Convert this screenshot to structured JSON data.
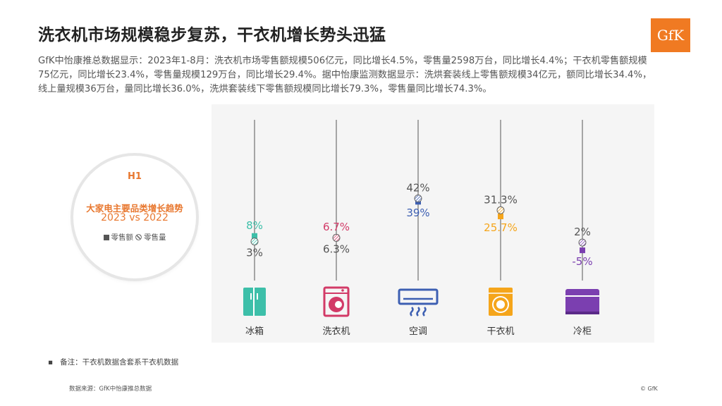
{
  "title": "洗衣机市场规模稳步复苏，干衣机增长势头迅猛",
  "logo_text": "GfK",
  "summary": "GfK中怡康推总数据显示：2023年1-8月：洗衣机市场零售额规模506亿元，同比增长4.5%，零售量2598万台，同比增长4.4%；干衣机零售额规模75亿元，同比增长23.4%，零售量规模129万台，同比增长29.4%。据中怡康监测数据显示：洗烘套装线上零售额规模34亿元，额同比增长34.4%，线上量规模36万台，量同比增长36.0%，洗烘套装线下零售额规模同比增长79.3%，零售量同比增长74.3%。",
  "badge": {
    "period": "H1",
    "subtitle": "大家电主要品类增长趋势",
    "years": "2023 vs 2022",
    "legend_value": "零售额",
    "legend_volume": "零售量"
  },
  "chart_data": {
    "type": "scatter",
    "title": "大家电主要品类增长趋势",
    "categories": [
      "冰箱",
      "洗衣机",
      "空调",
      "干衣机",
      "冷柜"
    ],
    "series": [
      {
        "name": "零售额",
        "values": [
          8,
          6.7,
          39,
          25.7,
          -5
        ],
        "labels": [
          "8%",
          "6.7%",
          "39%",
          "25.7%",
          "-5%"
        ]
      },
      {
        "name": "零售量",
        "values": [
          3,
          6.3,
          42,
          31.3,
          2
        ],
        "labels": [
          "3%",
          "6.3%",
          "42%",
          "31.3%",
          "2%"
        ]
      }
    ],
    "colors": [
      "#3dbfa9",
      "#d23a67",
      "#3d5fb2",
      "#f5a51b",
      "#7b3fb0"
    ],
    "icons": [
      "refrigerator-icon",
      "washing-machine-icon",
      "air-conditioner-icon",
      "dryer-icon",
      "freezer-icon"
    ],
    "grid": false
  },
  "note": "备注：干衣机数据含套系干衣机数据",
  "source": "数据来源：GfK中怡康推总数据",
  "copyright": "© GfK"
}
